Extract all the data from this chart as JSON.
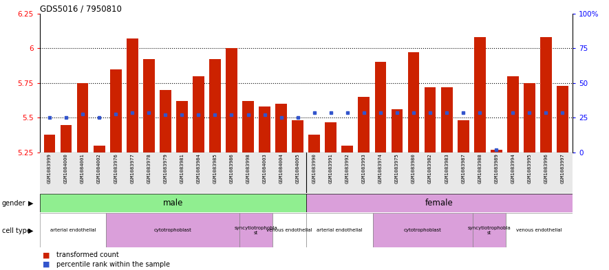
{
  "title": "GDS5016 / 7950810",
  "samples": [
    "GSM1083999",
    "GSM1084000",
    "GSM1084001",
    "GSM1084002",
    "GSM1083976",
    "GSM1083977",
    "GSM1083978",
    "GSM1083979",
    "GSM1083981",
    "GSM1083984",
    "GSM1083985",
    "GSM1083986",
    "GSM1083998",
    "GSM1084003",
    "GSM1084004",
    "GSM1084005",
    "GSM1083990",
    "GSM1083991",
    "GSM1083992",
    "GSM1083993",
    "GSM1083974",
    "GSM1083975",
    "GSM1083980",
    "GSM1083982",
    "GSM1083983",
    "GSM1083987",
    "GSM1083988",
    "GSM1083989",
    "GSM1083994",
    "GSM1083995",
    "GSM1083996",
    "GSM1083997"
  ],
  "bar_values": [
    5.38,
    5.45,
    5.75,
    5.3,
    5.85,
    6.07,
    5.92,
    5.7,
    5.62,
    5.8,
    5.92,
    6.0,
    5.62,
    5.58,
    5.6,
    5.48,
    5.38,
    5.47,
    5.3,
    5.65,
    5.9,
    5.56,
    5.97,
    5.72,
    5.72,
    5.48,
    6.08,
    5.27,
    5.8,
    5.75,
    6.08,
    5.73
  ],
  "blue_values": [
    5.5,
    5.5,
    5.525,
    5.5,
    5.525,
    5.535,
    5.535,
    5.52,
    5.52,
    5.52,
    5.52,
    5.52,
    5.52,
    5.52,
    5.5,
    5.5,
    5.535,
    5.535,
    5.535,
    5.535,
    5.535,
    5.535,
    5.535,
    5.535,
    5.535,
    5.535,
    5.535,
    5.27,
    5.535,
    5.535,
    5.535,
    5.535
  ],
  "ylim": [
    5.25,
    6.25
  ],
  "y_ticks": [
    5.25,
    5.5,
    5.75,
    6.0,
    6.25
  ],
  "ytick_labels": [
    "5.25",
    "5.5",
    "5.75",
    "6",
    "6.25"
  ],
  "right_ytick_positions": [
    5.25,
    5.5,
    5.75,
    6.0,
    6.25
  ],
  "right_ytick_labels": [
    "0",
    "25",
    "50",
    "75",
    "100%"
  ],
  "bar_color": "#CC2200",
  "blue_color": "#3355CC",
  "gender_male_color": "#90EE90",
  "gender_female_color": "#DA9FDA",
  "num_male": 16,
  "num_female": 16,
  "male_cell_types": [
    {
      "label": "arterial endothelial",
      "count": 4,
      "color": "#FFFFFF"
    },
    {
      "label": "cytotrophoblast",
      "count": 8,
      "color": "#DA9FDA"
    },
    {
      "label": "syncytiotrophobla\nst",
      "count": 2,
      "color": "#DA9FDA"
    },
    {
      "label": "venous endothelial",
      "count": 2,
      "color": "#FFFFFF"
    }
  ],
  "female_cell_types": [
    {
      "label": "arterial endothelial",
      "count": 4,
      "color": "#FFFFFF"
    },
    {
      "label": "cytotrophoblast",
      "count": 6,
      "color": "#DA9FDA"
    },
    {
      "label": "syncytiotrophobla\nst",
      "count": 2,
      "color": "#DA9FDA"
    },
    {
      "label": "venous endothelial",
      "count": 4,
      "color": "#FFFFFF"
    }
  ]
}
